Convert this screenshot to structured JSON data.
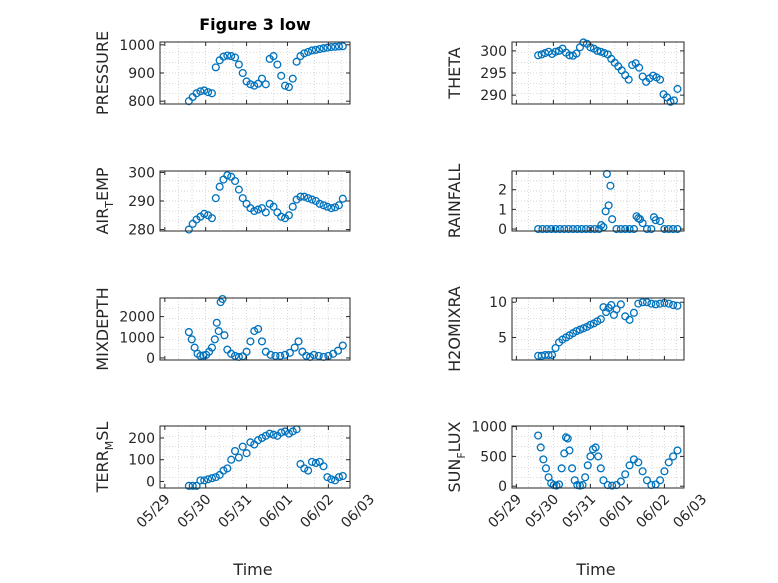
{
  "figure": {
    "title": "Figure 3 low",
    "marker_color": "#0072BD",
    "background": "#ffffff"
  },
  "chart_data": [
    {
      "type": "scatter",
      "ylabel": "PRESSURE",
      "ylim": [
        790,
        1010
      ],
      "yticks": [
        800,
        900,
        1000
      ],
      "xlim": [
        "05/29",
        "06/03"
      ],
      "x": [
        0.0,
        0.08,
        0.16,
        0.24,
        0.32,
        0.4,
        0.48,
        0.56,
        0.64,
        0.72,
        0.8,
        0.88,
        0.96,
        1.04,
        1.12,
        1.2,
        1.28,
        1.36,
        1.44,
        1.52,
        1.6,
        1.68,
        1.76,
        1.84,
        1.92,
        2.0,
        2.08,
        2.16,
        2.24,
        2.32,
        2.4,
        2.48,
        2.56,
        2.64,
        2.72,
        2.8,
        2.88,
        2.96,
        3.04,
        3.12,
        3.2
      ],
      "y": [
        800,
        815,
        828,
        835,
        838,
        832,
        828,
        920,
        945,
        958,
        962,
        960,
        955,
        930,
        900,
        870,
        860,
        855,
        862,
        880,
        860,
        950,
        960,
        930,
        890,
        855,
        850,
        880,
        940,
        960,
        970,
        975,
        980,
        982,
        985,
        988,
        990,
        992,
        993,
        994,
        995
      ]
    },
    {
      "type": "scatter",
      "ylabel": "THETA",
      "ylim": [
        288,
        302
      ],
      "yticks": [
        290,
        295,
        300
      ],
      "x": [
        0.0,
        0.08,
        0.16,
        0.24,
        0.32,
        0.4,
        0.48,
        0.56,
        0.64,
        0.72,
        0.8,
        0.88,
        0.96,
        1.04,
        1.12,
        1.2,
        1.28,
        1.36,
        1.44,
        1.52,
        1.6,
        1.68,
        1.76,
        1.84,
        1.92,
        2.0,
        2.08,
        2.16,
        2.24,
        2.32,
        2.4,
        2.48,
        2.56,
        2.64,
        2.72,
        2.8,
        2.88,
        2.96,
        3.04,
        3.12,
        3.2
      ],
      "y": [
        299,
        299.2,
        299.5,
        299.8,
        299.3,
        299.8,
        300,
        300.5,
        299.6,
        299,
        298.9,
        299.4,
        300.8,
        301.9,
        301.6,
        300.8,
        300.5,
        300,
        299.8,
        299.5,
        299.2,
        298.2,
        297.3,
        296.5,
        295.6,
        294.5,
        293.5,
        296.8,
        297.2,
        296.2,
        294.2,
        293,
        293.8,
        294.4,
        294,
        293.5,
        290.2,
        289.5,
        288.5,
        288.8,
        291.4
      ]
    },
    {
      "type": "scatter",
      "ylabel": "AIR_TEMP",
      "ylim": [
        279.5,
        300.5
      ],
      "yticks": [
        280,
        290,
        300
      ],
      "x": [
        0.0,
        0.08,
        0.16,
        0.24,
        0.32,
        0.4,
        0.48,
        0.56,
        0.64,
        0.72,
        0.8,
        0.88,
        0.96,
        1.04,
        1.12,
        1.2,
        1.28,
        1.36,
        1.44,
        1.52,
        1.6,
        1.68,
        1.76,
        1.84,
        1.92,
        2.0,
        2.08,
        2.16,
        2.24,
        2.32,
        2.4,
        2.48,
        2.56,
        2.64,
        2.72,
        2.8,
        2.88,
        2.96,
        3.04,
        3.12,
        3.2
      ],
      "y": [
        280,
        282,
        283.5,
        284.5,
        285.5,
        285,
        284,
        291,
        295,
        297.5,
        299,
        298.5,
        297,
        294,
        291,
        289,
        287.5,
        286.5,
        287,
        287.5,
        286,
        289,
        288,
        286,
        284.5,
        284,
        285,
        288,
        290.5,
        291.5,
        291.5,
        291,
        290.5,
        290,
        289,
        288.5,
        288,
        287.5,
        287.8,
        288.5,
        290.8
      ]
    },
    {
      "type": "scatter",
      "ylabel": "RAINFALL",
      "ylim": [
        -0.1,
        2.95
      ],
      "yticks": [
        0,
        1,
        2
      ],
      "x": [
        0.0,
        0.1,
        0.2,
        0.3,
        0.4,
        0.5,
        0.6,
        0.7,
        0.8,
        0.9,
        1.0,
        1.1,
        1.2,
        1.3,
        1.4,
        1.45,
        1.5,
        1.55,
        1.58,
        1.62,
        1.66,
        1.7,
        1.8,
        1.9,
        2.0,
        2.1,
        2.2,
        2.26,
        2.3,
        2.34,
        2.4,
        2.5,
        2.6,
        2.66,
        2.7,
        2.8,
        2.9,
        3.0,
        3.1,
        3.2
      ],
      "y": [
        0,
        0,
        0,
        0,
        0,
        0,
        0,
        0,
        0,
        0,
        0,
        0,
        0,
        0,
        0,
        0.2,
        0.1,
        0.9,
        2.8,
        1.2,
        2.2,
        0.5,
        0,
        0,
        0,
        0,
        0,
        0.65,
        0.55,
        0.5,
        0.3,
        0,
        0,
        0.6,
        0.45,
        0.4,
        0,
        0,
        0,
        0
      ]
    },
    {
      "type": "scatter",
      "ylabel": "MIXDEPTH",
      "ylim": [
        -100,
        2900
      ],
      "yticks": [
        0,
        1000,
        2000
      ],
      "x": [
        0.0,
        0.06,
        0.12,
        0.18,
        0.24,
        0.3,
        0.36,
        0.42,
        0.48,
        0.54,
        0.58,
        0.62,
        0.66,
        0.7,
        0.74,
        0.8,
        0.88,
        0.96,
        1.04,
        1.12,
        1.2,
        1.28,
        1.36,
        1.44,
        1.52,
        1.6,
        1.7,
        1.8,
        1.9,
        2.0,
        2.1,
        2.2,
        2.28,
        2.36,
        2.44,
        2.52,
        2.6,
        2.7,
        2.8,
        2.9,
        3.0,
        3.1,
        3.2
      ],
      "y": [
        1250,
        900,
        500,
        200,
        100,
        120,
        150,
        300,
        500,
        900,
        1700,
        1300,
        2700,
        2850,
        1100,
        400,
        200,
        100,
        50,
        80,
        300,
        800,
        1300,
        1400,
        800,
        300,
        150,
        100,
        100,
        150,
        250,
        500,
        800,
        300,
        100,
        50,
        150,
        100,
        50,
        100,
        200,
        350,
        600
      ]
    },
    {
      "type": "scatter",
      "ylabel": "H2OMIXRA",
      "ylim": [
        1.8,
        10.6
      ],
      "yticks": [
        5,
        10
      ],
      "x": [
        0.0,
        0.08,
        0.16,
        0.24,
        0.32,
        0.4,
        0.48,
        0.56,
        0.64,
        0.72,
        0.8,
        0.88,
        0.96,
        1.04,
        1.12,
        1.2,
        1.28,
        1.36,
        1.44,
        1.5,
        1.56,
        1.62,
        1.68,
        1.74,
        1.8,
        1.9,
        2.0,
        2.1,
        2.2,
        2.3,
        2.4,
        2.5,
        2.6,
        2.7,
        2.8,
        2.9,
        3.0,
        3.1,
        3.2
      ],
      "y": [
        2.4,
        2.4,
        2.5,
        2.5,
        2.5,
        3.5,
        4.3,
        4.7,
        5.0,
        5.3,
        5.6,
        5.9,
        6.1,
        6.3,
        6.5,
        6.8,
        7.0,
        7.3,
        7.6,
        9.3,
        8.6,
        9.2,
        9.6,
        8.2,
        9.0,
        9.7,
        8.0,
        7.5,
        8.5,
        9.8,
        10.0,
        10.0,
        9.8,
        9.7,
        9.8,
        9.9,
        9.8,
        9.6,
        9.5
      ]
    },
    {
      "type": "scatter",
      "ylabel": "TERR_MSL",
      "ylim": [
        -30,
        255
      ],
      "yticks": [
        0,
        100,
        200
      ],
      "x": [
        0.0,
        0.08,
        0.16,
        0.24,
        0.32,
        0.4,
        0.48,
        0.56,
        0.64,
        0.72,
        0.8,
        0.88,
        0.96,
        1.04,
        1.12,
        1.2,
        1.28,
        1.36,
        1.44,
        1.52,
        1.6,
        1.68,
        1.76,
        1.84,
        1.92,
        2.0,
        2.08,
        2.16,
        2.24,
        2.32,
        2.4,
        2.48,
        2.56,
        2.64,
        2.72,
        2.8,
        2.88,
        2.96,
        3.04,
        3.12,
        3.2
      ],
      "y": [
        -20,
        -20,
        -20,
        5,
        5,
        10,
        15,
        20,
        30,
        50,
        60,
        100,
        140,
        110,
        160,
        130,
        180,
        170,
        190,
        200,
        210,
        220,
        215,
        210,
        225,
        230,
        220,
        230,
        240,
        80,
        60,
        50,
        90,
        85,
        90,
        70,
        20,
        10,
        5,
        20,
        25
      ]
    },
    {
      "type": "scatter",
      "ylabel": "SUN_FLUX",
      "ylim": [
        -30,
        1010
      ],
      "yticks": [
        0,
        500,
        1000
      ],
      "x": [
        0.0,
        0.06,
        0.12,
        0.18,
        0.24,
        0.3,
        0.36,
        0.42,
        0.48,
        0.54,
        0.6,
        0.64,
        0.68,
        0.72,
        0.78,
        0.84,
        0.9,
        0.96,
        1.02,
        1.08,
        1.14,
        1.2,
        1.26,
        1.32,
        1.38,
        1.44,
        1.5,
        1.6,
        1.7,
        1.8,
        1.9,
        2.0,
        2.1,
        2.2,
        2.3,
        2.4,
        2.5,
        2.6,
        2.7,
        2.8,
        2.9,
        3.0,
        3.1,
        3.2
      ],
      "y": [
        850,
        650,
        450,
        300,
        150,
        50,
        20,
        10,
        30,
        300,
        550,
        820,
        800,
        600,
        300,
        100,
        20,
        10,
        20,
        150,
        350,
        500,
        620,
        650,
        500,
        300,
        100,
        20,
        10,
        20,
        80,
        200,
        350,
        450,
        400,
        250,
        100,
        20,
        30,
        100,
        250,
        400,
        500,
        600
      ]
    }
  ],
  "x_axis": {
    "tick_labels": [
      "05/29",
      "05/30",
      "05/31",
      "06/01",
      "06/02",
      "06/03"
    ],
    "label": "Time"
  }
}
